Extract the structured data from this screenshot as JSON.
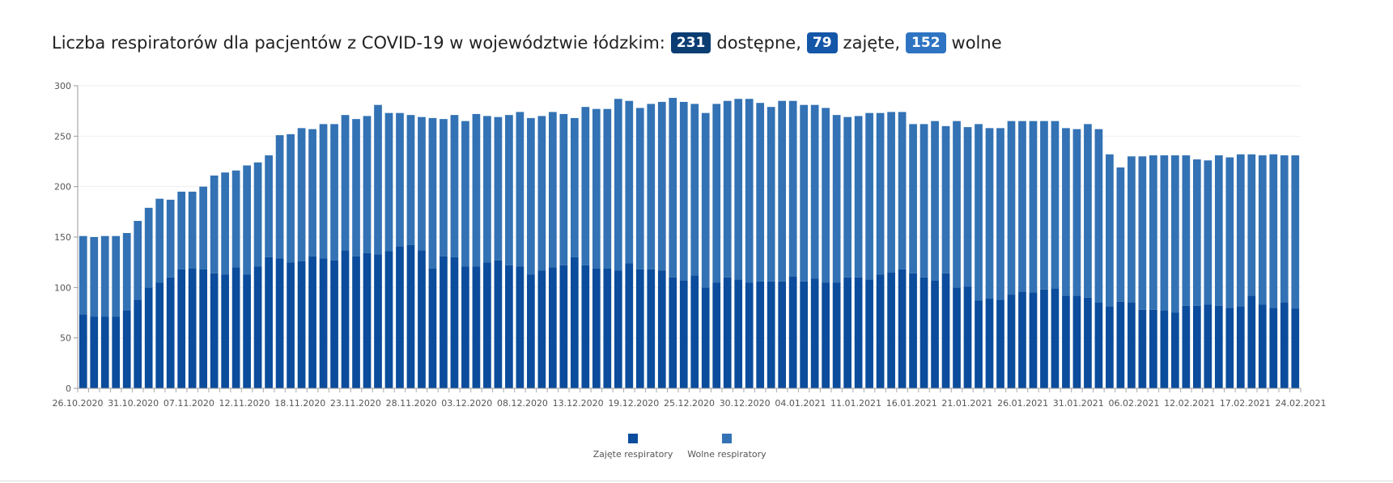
{
  "header": {
    "title_prefix": "Liczba respiratorów dla pacjentów z COVID-19 w województwie łódzkim:",
    "available_value": "231",
    "available_label": "dostępne,",
    "occupied_value": "79",
    "occupied_label": "zajęte,",
    "free_value": "152",
    "free_label": "wolne"
  },
  "colors": {
    "occupied": "#0b4c9c",
    "free": "#3372b4",
    "available_badge": "#0b3d73",
    "occupied_badge": "#1456a8",
    "free_badge": "#2e74c2"
  },
  "chart_data": {
    "type": "bar",
    "stacked": true,
    "ylim": [
      0,
      300
    ],
    "yticks": [
      0,
      50,
      100,
      150,
      200,
      250,
      300
    ],
    "grid": true,
    "legend_position": "bottom",
    "x_tick_labels": [
      "26.10.2020",
      "31.10.2020",
      "07.11.2020",
      "12.11.2020",
      "18.11.2020",
      "23.11.2020",
      "28.11.2020",
      "03.12.2020",
      "08.12.2020",
      "13.12.2020",
      "19.12.2020",
      "25.12.2020",
      "30.12.2020",
      "04.01.2021",
      "11.01.2021",
      "16.01.2021",
      "21.01.2021",
      "26.01.2021",
      "31.01.2021",
      "06.02.2021",
      "12.02.2021",
      "17.02.2021",
      "24.02.2021"
    ],
    "series": [
      {
        "name": "Zajęte respiratory",
        "values": [
          73,
          71,
          71,
          71,
          77,
          88,
          100,
          105,
          110,
          118,
          119,
          118,
          114,
          113,
          120,
          113,
          121,
          130,
          129,
          125,
          126,
          131,
          129,
          127,
          137,
          131,
          134,
          133,
          136,
          141,
          142,
          137,
          119,
          131,
          130,
          121,
          121,
          125,
          127,
          122,
          121,
          113,
          117,
          120,
          122,
          130,
          122,
          119,
          119,
          117,
          124,
          118,
          118,
          117,
          110,
          107,
          112,
          100,
          105,
          110,
          108,
          105,
          106,
          106,
          106,
          111,
          106,
          109,
          105,
          105,
          110,
          110,
          108,
          113,
          115,
          118,
          114,
          110,
          107,
          114,
          100,
          101,
          87,
          89,
          88,
          93,
          96,
          95,
          98,
          99,
          92,
          92,
          90,
          85,
          81,
          86,
          85,
          78,
          78,
          77,
          75,
          82,
          82,
          83,
          82,
          80,
          81,
          92,
          83,
          80,
          85,
          79
        ]
      },
      {
        "name": "Wolne respiratory",
        "values": [
          78,
          79,
          80,
          80,
          77,
          78,
          79,
          83,
          77,
          77,
          76,
          82,
          97,
          101,
          96,
          108,
          103,
          101,
          122,
          127,
          132,
          126,
          133,
          135,
          134,
          136,
          136,
          148,
          137,
          132,
          129,
          132,
          149,
          136,
          141,
          144,
          151,
          145,
          142,
          149,
          153,
          155,
          153,
          154,
          150,
          138,
          157,
          158,
          158,
          170,
          161,
          160,
          164,
          167,
          178,
          177,
          170,
          173,
          177,
          175,
          179,
          182,
          177,
          173,
          179,
          174,
          175,
          172,
          173,
          166,
          159,
          160,
          165,
          160,
          159,
          156,
          148,
          152,
          158,
          146,
          165,
          158,
          175,
          169,
          170,
          172,
          169,
          170,
          167,
          166,
          166,
          165,
          172,
          172,
          151,
          133,
          145,
          152,
          153,
          154,
          156,
          149,
          145,
          143,
          149,
          149,
          151,
          140,
          148,
          152,
          146,
          152
        ]
      }
    ]
  }
}
